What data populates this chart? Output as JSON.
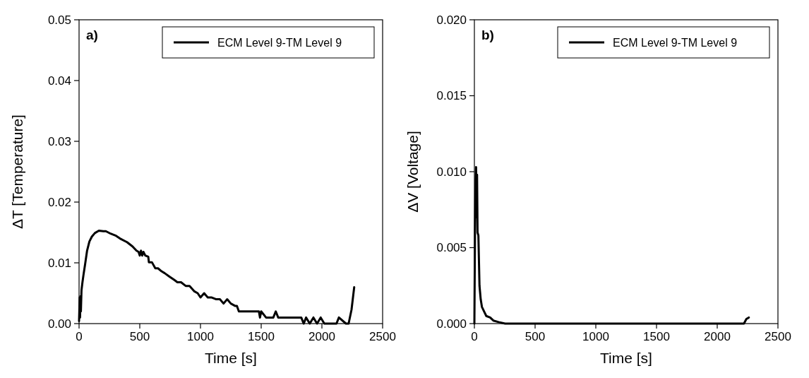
{
  "chart_data": [
    {
      "type": "line",
      "xlabel": "Time [s]",
      "ylabel": "ΔT [Temperature]",
      "annotations": [
        "a)"
      ],
      "legend": "top right",
      "xlim": [
        0,
        2500
      ],
      "ylim": [
        0,
        0.05
      ],
      "xticks": [
        0,
        500,
        1000,
        1500,
        2000,
        2500
      ],
      "yticks": [
        {
          "value": 0,
          "label": "0.00"
        },
        {
          "value": 0.01,
          "label": "0.01"
        },
        {
          "value": 0.02,
          "label": "0.02"
        },
        {
          "value": 0.03,
          "label": "0.03"
        },
        {
          "value": 0.04,
          "label": "0.04"
        },
        {
          "value": 0.05,
          "label": "0.05"
        }
      ],
      "line_style": "solid",
      "marker": "none",
      "series": [
        {
          "name": "ECM Level 9-TM Level 9",
          "color": "#000000",
          "x": [
            0,
            5,
            8,
            12,
            15,
            20,
            28,
            37,
            50,
            66,
            85,
            105,
            130,
            163,
            200,
            221,
            260,
            300,
            337,
            395,
            440,
            473,
            490,
            500,
            510,
            520,
            530,
            545,
            570,
            575,
            600,
            628,
            650,
            680,
            705,
            740,
            783,
            810,
            840,
            878,
            910,
            950,
            977,
            1000,
            1030,
            1060,
            1093,
            1130,
            1160,
            1190,
            1220,
            1250,
            1287,
            1300,
            1316,
            1400,
            1481,
            1490,
            1500,
            1540,
            1600,
            1620,
            1640,
            1700,
            1800,
            1830,
            1850,
            1870,
            1900,
            1930,
            1960,
            1990,
            2020,
            2100,
            2120,
            2140,
            2198,
            2220,
            2244,
            2266
          ],
          "values": [
            0.0004,
            0.0043,
            0.001,
            0.0045,
            0.002,
            0.0055,
            0.0068,
            0.0081,
            0.0098,
            0.012,
            0.0135,
            0.0143,
            0.0149,
            0.0153,
            0.0152,
            0.0152,
            0.0148,
            0.0145,
            0.014,
            0.0134,
            0.0127,
            0.012,
            0.0118,
            0.0112,
            0.012,
            0.0112,
            0.0118,
            0.0112,
            0.011,
            0.0101,
            0.0101,
            0.0091,
            0.0091,
            0.0086,
            0.0083,
            0.0078,
            0.0072,
            0.0068,
            0.0068,
            0.0062,
            0.0062,
            0.0053,
            0.005,
            0.0043,
            0.005,
            0.0043,
            0.0043,
            0.004,
            0.004,
            0.0033,
            0.004,
            0.0033,
            0.0029,
            0.0029,
            0.002,
            0.002,
            0.002,
            0.001,
            0.002,
            0.001,
            0.001,
            0.002,
            0.001,
            0.001,
            0.001,
            0.001,
            0,
            0.001,
            0,
            0.001,
            0,
            0.001,
            0,
            0,
            0,
            0.001,
            0,
            0,
            0.0023,
            0.006
          ]
        }
      ]
    },
    {
      "type": "line",
      "xlabel": "Time [s]",
      "ylabel": "ΔV [Voltage]",
      "annotations": [
        "b)"
      ],
      "legend": "top right",
      "xlim": [
        0,
        2500
      ],
      "ylim": [
        0,
        0.02
      ],
      "xticks": [
        0,
        500,
        1000,
        1500,
        2000,
        2500
      ],
      "yticks": [
        {
          "value": 0,
          "label": "0.000"
        },
        {
          "value": 0.005,
          "label": "0.005"
        },
        {
          "value": 0.01,
          "label": "0.010"
        },
        {
          "value": 0.015,
          "label": "0.015"
        },
        {
          "value": 0.02,
          "label": "0.020"
        }
      ],
      "line_style": "solid",
      "marker": "none",
      "series": [
        {
          "name": "ECM Level 9-TM Level 9",
          "color": "#000000",
          "x": [
            0,
            5,
            10,
            14,
            18,
            22,
            26,
            33,
            42,
            52,
            62,
            80,
            98,
            130,
            156,
            200,
            253,
            300,
            400,
            500,
            1000,
            1500,
            2000,
            2220,
            2240,
            2260
          ],
          "values": [
            0,
            0.006,
            0.0095,
            0.0103,
            0.007,
            0.0098,
            0.006,
            0.0058,
            0.0025,
            0.0016,
            0.0011,
            0.0008,
            0.0005,
            0.0004,
            0.0002,
            0.0001,
            0,
            0,
            0,
            0,
            0,
            0,
            0,
            0,
            0.0003,
            0.0004
          ]
        }
      ]
    }
  ]
}
